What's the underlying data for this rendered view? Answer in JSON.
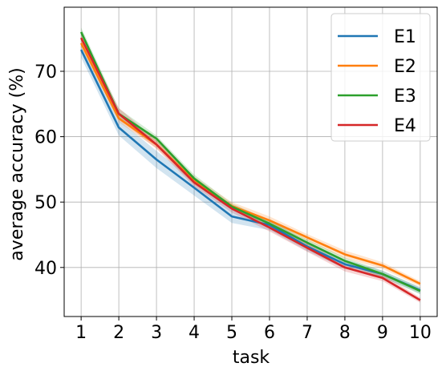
{
  "chart_data": {
    "type": "line",
    "xlabel": "task",
    "ylabel": "average accuracy (%)",
    "x": [
      1,
      2,
      3,
      4,
      5,
      6,
      7,
      8,
      9,
      10
    ],
    "xlim": [
      0.55,
      10.45
    ],
    "ylim": [
      32.5,
      79.8
    ],
    "yticks": [
      40,
      50,
      60,
      70
    ],
    "grid": true,
    "legend_position": "top-right",
    "series": [
      {
        "name": "E1",
        "color": "#1f77b4",
        "values": [
          73.3,
          61.4,
          56.5,
          52.2,
          47.8,
          46.5,
          43.2,
          40.5,
          39.0,
          36.5
        ],
        "spread": [
          1.2,
          1.2,
          1.3,
          1.2,
          1.0,
          0.8,
          0.7,
          0.7,
          0.5,
          0.5
        ]
      },
      {
        "name": "E2",
        "color": "#ff7f0e",
        "values": [
          74.3,
          62.8,
          58.8,
          53.3,
          49.4,
          47.2,
          44.6,
          42.0,
          40.3,
          37.5
        ],
        "spread": [
          0.6,
          0.6,
          0.6,
          0.6,
          0.6,
          0.6,
          0.5,
          0.6,
          0.5,
          0.4
        ]
      },
      {
        "name": "E3",
        "color": "#2ca02c",
        "values": [
          76.0,
          63.5,
          59.7,
          53.6,
          49.3,
          46.7,
          43.8,
          41.0,
          39.0,
          36.4
        ],
        "spread": [
          0.7,
          0.8,
          0.5,
          0.6,
          0.5,
          0.5,
          0.5,
          0.5,
          0.5,
          0.5
        ]
      },
      {
        "name": "E4",
        "color": "#d62728",
        "values": [
          75.1,
          63.5,
          58.8,
          53.0,
          49.0,
          46.1,
          43.0,
          40.0,
          38.4,
          35.0
        ],
        "spread": [
          0.8,
          0.9,
          0.6,
          0.6,
          0.6,
          0.6,
          0.6,
          0.6,
          0.5,
          0.4
        ]
      }
    ]
  }
}
